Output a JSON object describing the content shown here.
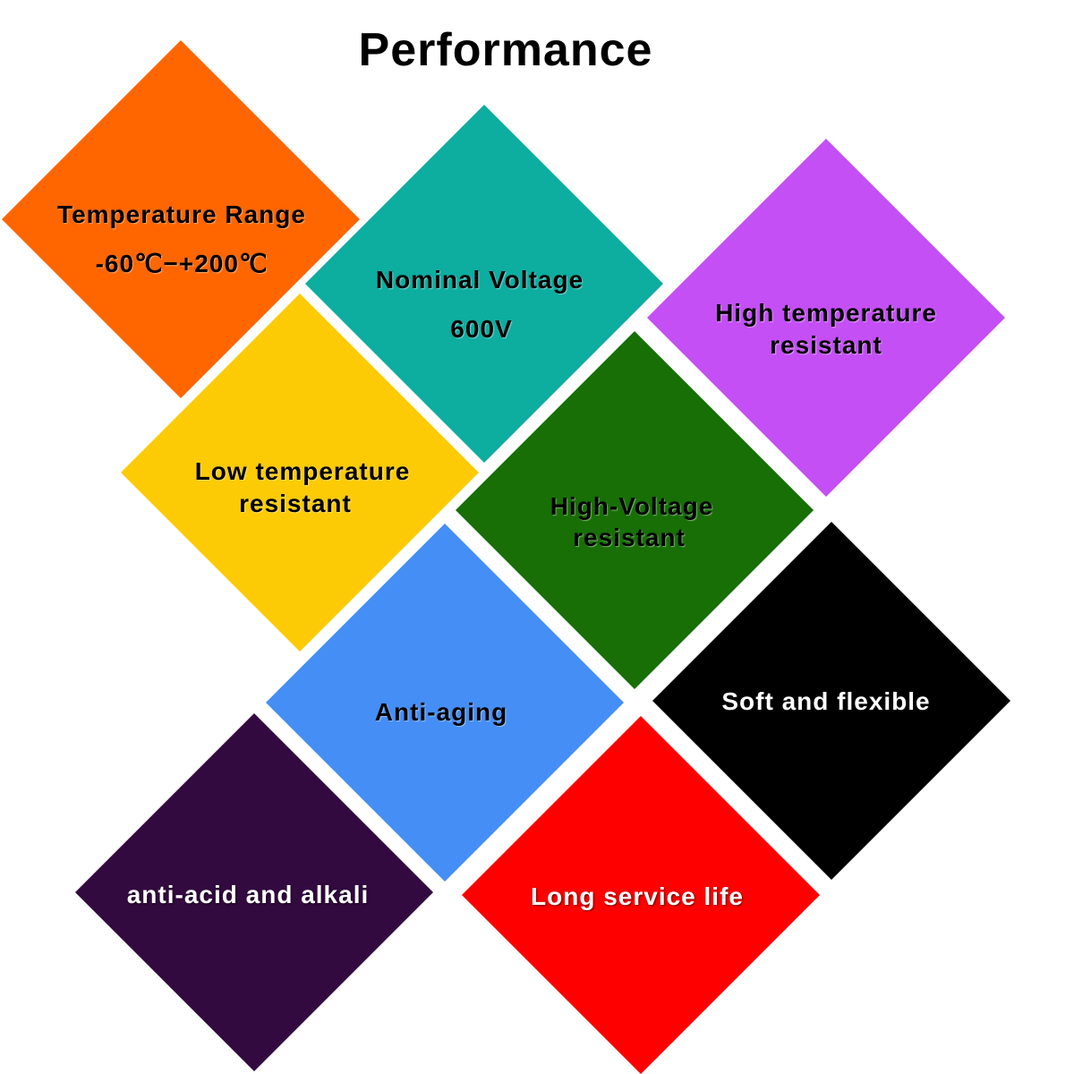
{
  "title": "Performance",
  "tiles": [
    {
      "lines": [
        "Temperature Range",
        "-60℃−+200℃"
      ],
      "color": "#ff6600",
      "text_color": "dark"
    },
    {
      "lines": [
        "Nominal Voltage",
        "600V"
      ],
      "color": "#0dada0",
      "text_color": "dark"
    },
    {
      "lines": [
        "High temperature",
        "resistant"
      ],
      "color": "#c44ff5",
      "text_color": "dark"
    },
    {
      "lines": [
        "Low temperature",
        "resistant"
      ],
      "color": "#fccb05",
      "text_color": "dark"
    },
    {
      "lines": [
        "High-Voltage",
        "resistant"
      ],
      "color": "#176f06",
      "text_color": "dark"
    },
    {
      "lines": [
        "Anti-aging"
      ],
      "color": "#458ef5",
      "text_color": "dark"
    },
    {
      "lines": [
        "Soft and flexible"
      ],
      "color": "#000000",
      "text_color": "light"
    },
    {
      "lines": [
        "anti-acid and alkali"
      ],
      "color": "#330a3f",
      "text_color": "light"
    },
    {
      "lines": [
        "Long service life"
      ],
      "color": "#fe0000",
      "text_color": "light"
    }
  ]
}
